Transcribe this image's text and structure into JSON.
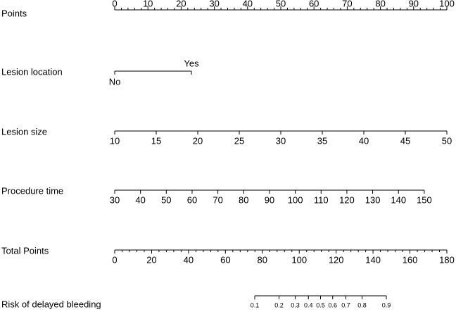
{
  "chart_data": {
    "type": "nomogram",
    "color": "#000000",
    "points_axis": {
      "label": "Points",
      "xlim": [
        0,
        100
      ],
      "ticks": [
        0,
        10,
        20,
        30,
        40,
        50,
        60,
        70,
        80,
        90,
        100
      ]
    },
    "variables": [
      {
        "label": "Lesion location",
        "categories": [
          "No",
          "Yes"
        ],
        "points": [
          0,
          23.1
        ]
      },
      {
        "label": "Lesion size",
        "xlim": [
          10,
          50
        ],
        "points_range": [
          0,
          100
        ],
        "ticks": [
          10,
          15,
          20,
          25,
          30,
          35,
          40,
          45,
          50
        ]
      },
      {
        "label": "Procedure time",
        "xlim": [
          30,
          150
        ],
        "points_range": [
          0,
          93.2
        ],
        "ticks": [
          30,
          40,
          50,
          60,
          70,
          80,
          90,
          100,
          110,
          120,
          130,
          140,
          150
        ]
      }
    ],
    "total_points_axis": {
      "label": "Total Points",
      "xlim": [
        0,
        180
      ],
      "ticks": [
        0,
        20,
        40,
        60,
        80,
        100,
        120,
        140,
        160,
        180
      ]
    },
    "risk_axis": {
      "label": "Risk of delayed bleeding",
      "scale": "logit",
      "xlim": [
        0.1,
        0.9
      ],
      "points_range": [
        75.9,
        147.2
      ],
      "ticks": [
        0.1,
        0.2,
        0.3,
        0.4,
        0.5,
        0.6,
        0.7,
        0.8,
        0.9
      ]
    }
  }
}
